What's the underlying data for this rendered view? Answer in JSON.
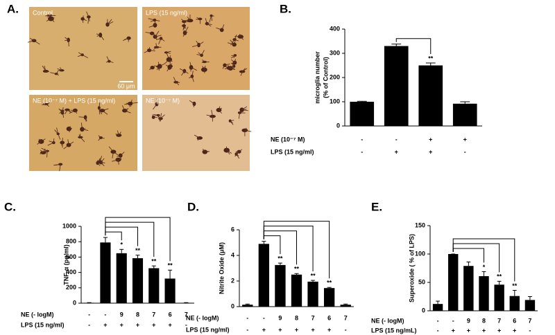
{
  "panel_a": {
    "label": "A.",
    "images": [
      {
        "label": "Control"
      },
      {
        "label": "LPS (15 ng/ml)"
      },
      {
        "label": "NE (10⁻⁷ M) + LPS (15 ng/ml)"
      },
      {
        "label": "NE (10⁻⁷ M)"
      }
    ],
    "scale_bar": "60 μm"
  },
  "chart_data": [
    {
      "type": "bar",
      "panel_label": "B.",
      "ylabel": [
        "microglia number",
        "(% of Control)"
      ],
      "values": [
        100,
        330,
        250,
        92
      ],
      "errors": [
        2,
        8,
        10,
        8
      ],
      "color": "#000000",
      "annotations": [
        null,
        null,
        "**",
        null
      ],
      "ylim": [
        0,
        400
      ],
      "yticks": [
        0,
        100,
        200,
        300,
        400
      ],
      "rows": [
        {
          "label": "NE (10⁻⁷ M)",
          "values": [
            "-",
            "-",
            "+",
            "+"
          ]
        },
        {
          "label": "LPS (15 ng/ml)",
          "values": [
            "-",
            "+",
            "+",
            "-"
          ]
        }
      ]
    },
    {
      "type": "bar",
      "panel_label": "C.",
      "ylabel": [
        "TNF-α (pg/ml)"
      ],
      "values": [
        5,
        790,
        650,
        585,
        455,
        320,
        5
      ],
      "errors": [
        2,
        65,
        50,
        40,
        30,
        110,
        2
      ],
      "color": "#000000",
      "annotations": [
        null,
        null,
        "*",
        "**",
        "**",
        "**",
        null
      ],
      "ylim": [
        0,
        1000
      ],
      "yticks": [
        0,
        200,
        400,
        600,
        800,
        1000
      ],
      "rows": [
        {
          "label": "NE (- logM)",
          "values": [
            "-",
            "-",
            "9",
            "8",
            "7",
            "6",
            "7"
          ]
        },
        {
          "label": "LPS (15 ng/ml)",
          "values": [
            "-",
            "+",
            "+",
            "+",
            "+",
            "+",
            "-"
          ]
        }
      ]
    },
    {
      "type": "bar",
      "panel_label": "D.",
      "ylabel": [
        "Nitrite Oxide (μM)"
      ],
      "values": [
        0.15,
        4.9,
        3.25,
        2.5,
        1.95,
        1.45,
        0.15
      ],
      "errors": [
        0.05,
        0.2,
        0.15,
        0.08,
        0.1,
        0.05,
        0.05
      ],
      "color": "#000000",
      "annotations": [
        null,
        null,
        "**",
        "**",
        "**",
        "**",
        null
      ],
      "ylim": [
        0,
        6
      ],
      "yticks": [
        0,
        2,
        4,
        6
      ],
      "rows": [
        {
          "label": "NE (- logM)",
          "values": [
            "-",
            "-",
            "9",
            "8",
            "7",
            "6",
            "7"
          ]
        },
        {
          "label": "LPS (15 ng/ml)",
          "values": [
            "-",
            "+",
            "+",
            "+",
            "+",
            "+",
            "-"
          ]
        }
      ]
    },
    {
      "type": "bar",
      "panel_label": "E.",
      "ylabel": [
        "Superoxide ( % of LPS)"
      ],
      "values": [
        12,
        100,
        79,
        61,
        46,
        26,
        19
      ],
      "errors": [
        5,
        0,
        7,
        8,
        6,
        10,
        6
      ],
      "color": "#000000",
      "annotations": [
        null,
        null,
        null,
        "*",
        "**",
        "**",
        null
      ],
      "ylim": [
        0,
        150
      ],
      "yticks": [
        0,
        50,
        100,
        150
      ],
      "rows": [
        {
          "label": "NE (- logM)",
          "values": [
            "-",
            "-",
            "9",
            "8",
            "7",
            "6",
            "7"
          ]
        },
        {
          "label": "LPS (15 ng/mL)",
          "values": [
            "-",
            "+",
            "+",
            "+",
            "+",
            "+",
            "-"
          ]
        }
      ]
    }
  ]
}
